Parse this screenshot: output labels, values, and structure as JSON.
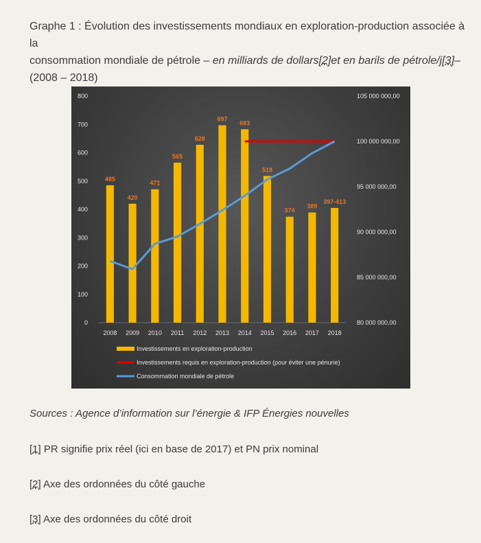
{
  "caption": {
    "line1": "Graphe 1 : Évolution des investissements mondiaux en exploration-production associée à la",
    "line2_plain": "consommation mondiale de pétrole – ",
    "line2_italic": "en milliards de dollars",
    "ref2": "[2]",
    "line2_italic_b": "et en barils de pétrole/j",
    "ref3": "[3]",
    "line2_end": "–",
    "line3": "(2008 – 2018)"
  },
  "chart_data": {
    "type": "bar",
    "categories": [
      "2008",
      "2009",
      "2010",
      "2011",
      "2012",
      "2013",
      "2014",
      "2015",
      "2016",
      "2017",
      "2018"
    ],
    "left_axis": {
      "ylim": [
        0,
        800
      ],
      "ticks": [
        "0",
        "100",
        "200",
        "300",
        "400",
        "500",
        "600",
        "700",
        "800"
      ]
    },
    "right_axis": {
      "ylim": [
        80000000,
        105000000
      ],
      "ticks": [
        "80 000 000,00",
        "85 000 000,00",
        "90 000 000,00",
        "95 000 000,00",
        "100 000 000,00",
        "105 000 000,00"
      ]
    },
    "series": [
      {
        "name": "Investissements en exploration-production",
        "kind": "bar",
        "axis": "left",
        "color": "#f5b800",
        "values": [
          485,
          420,
          471,
          565,
          628,
          697,
          683,
          518,
          374,
          389,
          405
        ],
        "labels": [
          "485",
          "420",
          "471",
          "565",
          "628",
          "697",
          "683",
          "518",
          "374",
          "389",
          "397-413"
        ]
      },
      {
        "name": "Investissements requis en exploration-production (pour éviter une pénurie)",
        "kind": "line",
        "axis": "right",
        "color": "#e10000",
        "x": [
          "2014",
          "2018"
        ],
        "values": [
          100000000,
          100000000
        ]
      },
      {
        "name": "Consommation mondiale de pétrole",
        "kind": "line",
        "axis": "right",
        "color": "#5a9bd4",
        "values": [
          86800000,
          85900000,
          88700000,
          89500000,
          90900000,
          92400000,
          94000000,
          95800000,
          97000000,
          98700000,
          100000000
        ]
      }
    ],
    "label_color": "#e8762c",
    "legend_position": "bottom",
    "grid": false
  },
  "sources": "Sources : Agence d’information sur l’énergie & IFP Énergies nouvelles",
  "notes": [
    {
      "num": "[1]",
      "text": " PR signifie prix réel (ici en base de 2017) et PN prix nominal"
    },
    {
      "num": "[2]",
      "text": " Axe des ordonnées du côté gauche"
    },
    {
      "num": "[3]",
      "text": " Axe des ordonnées du côté droit"
    }
  ]
}
